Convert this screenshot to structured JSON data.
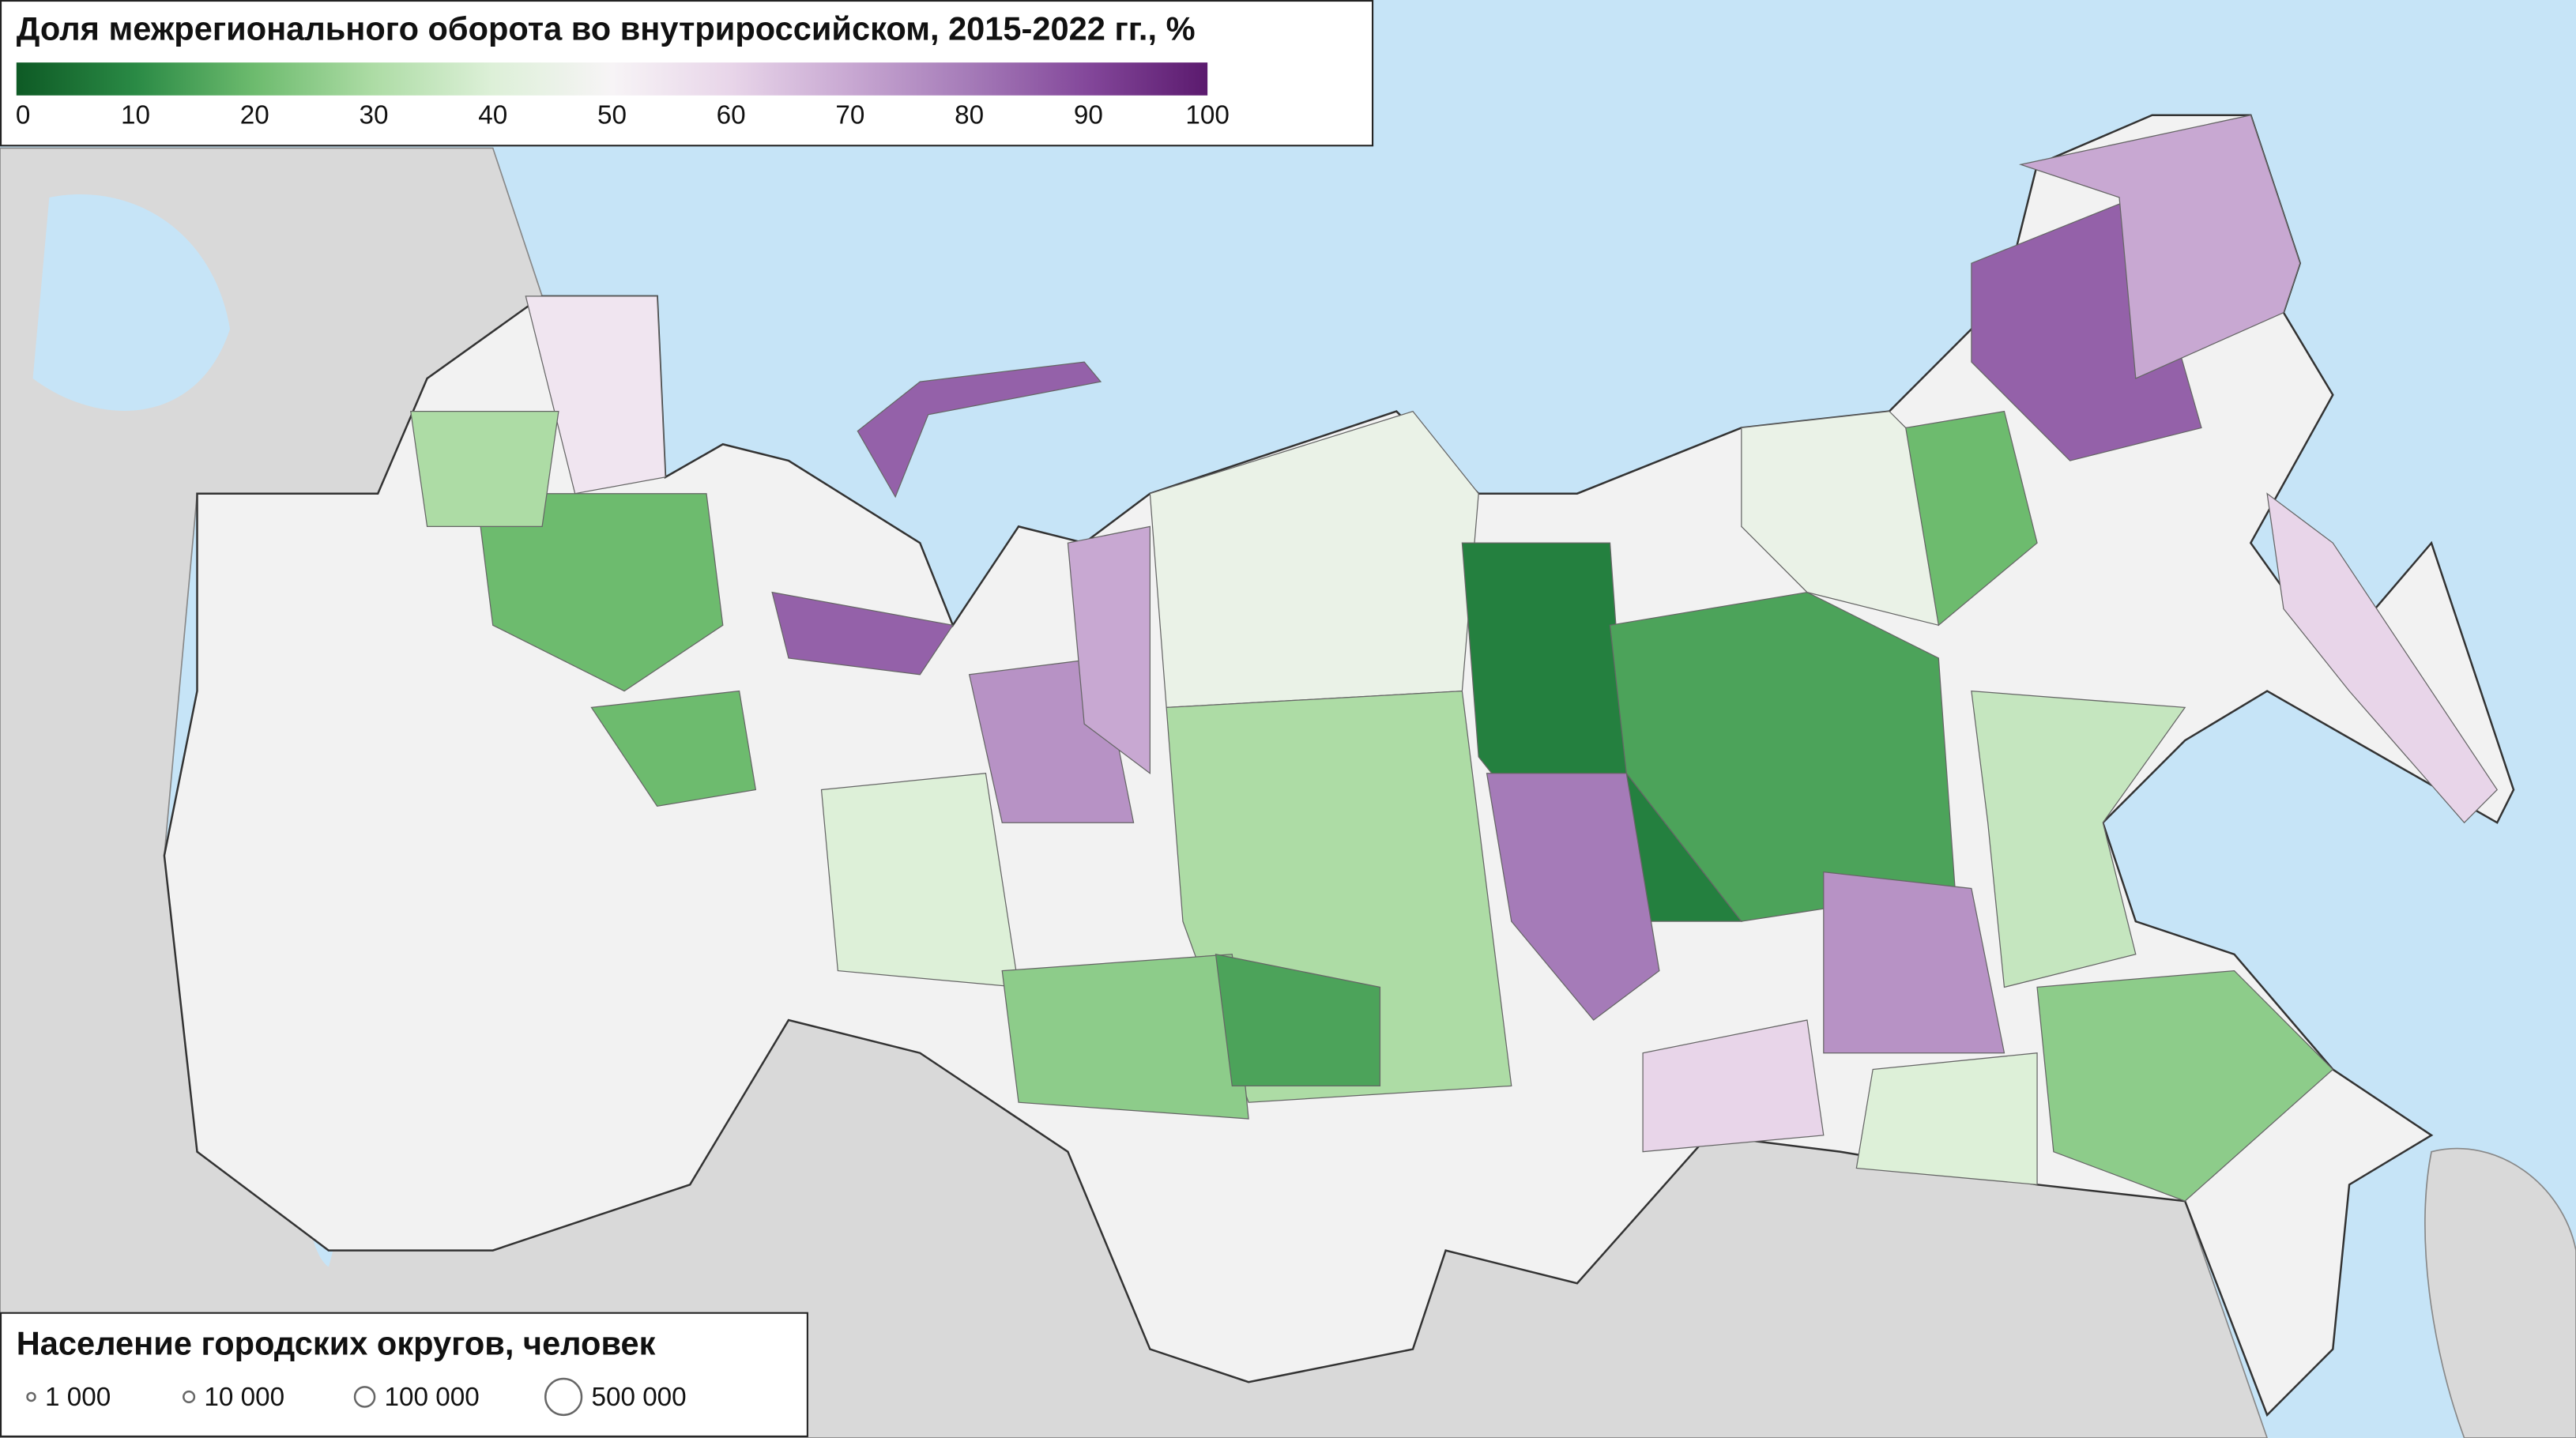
{
  "colorbar": {
    "title": "Доля межрегионального оборота во внутрироссийском, 2015-2022 гг., %",
    "ticks": [
      0,
      10,
      20,
      30,
      40,
      50,
      60,
      70,
      80,
      90,
      100
    ],
    "colors": [
      "#0e5a25",
      "#2a8a45",
      "#6dbb6e",
      "#addca5",
      "#ddf0d8",
      "#f7f4f6",
      "#e8d5e9",
      "#c8a8d2",
      "#a57bb8",
      "#83479a",
      "#5b1a6e"
    ]
  },
  "regions": [
    45,
    30,
    8,
    15,
    80,
    75,
    85,
    70,
    60,
    35,
    25,
    85,
    75,
    20,
    20,
    70,
    40,
    25,
    15,
    40,
    60,
    55,
    30,
    85,
    45,
    20
  ],
  "size_legend": {
    "title": "Население городских округов, человек",
    "items": [
      {
        "value": 1000,
        "label": "1 000"
      },
      {
        "value": 10000,
        "label": "10 000"
      },
      {
        "value": 100000,
        "label": "100 000"
      },
      {
        "value": 500000,
        "label": "500 000"
      }
    ]
  }
}
